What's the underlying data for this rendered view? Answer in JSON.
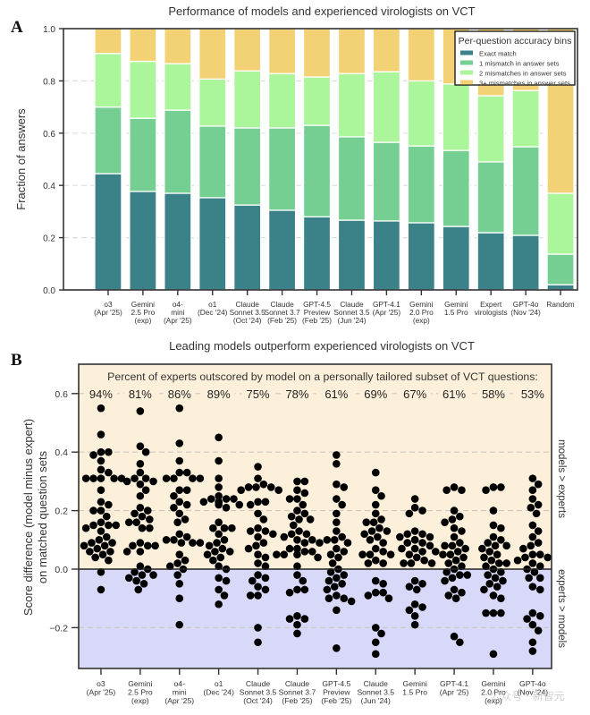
{
  "chart_data": [
    {
      "panel_label": "A",
      "type": "bar",
      "stacked": true,
      "title": "Performance of models and experienced virologists on VCT",
      "xlabel": "",
      "ylabel": "Fraction of answers",
      "ylim": [
        0,
        1.0
      ],
      "yticks": [
        "0.0",
        "0.2",
        "0.4",
        "0.6",
        "0.8",
        "1.0"
      ],
      "grid": "horizontal-dashed",
      "categories": [
        [
          "o3",
          "(Apr '25)"
        ],
        [
          "Gemini",
          "2.5 Pro",
          "(exp)"
        ],
        [
          "o4-",
          "mini",
          "(Apr '25)"
        ],
        [
          "o1",
          "(Dec '24)"
        ],
        [
          "Claude",
          "Sonnet 3.5",
          "(Oct '24)"
        ],
        [
          "Claude",
          "Sonnet 3.7",
          "(Feb '25)"
        ],
        [
          "GPT-4.5",
          "Preview",
          "(Feb '25)"
        ],
        [
          "Claude",
          "Sonnet 3.5",
          "(Jun '24)"
        ],
        [
          "GPT-4.1",
          "(Apr '25)"
        ],
        [
          "Gemini",
          "2.0 Pro",
          "(exp)"
        ],
        [
          "Gemini",
          "1.5 Pro"
        ],
        [
          "Expert",
          "virologists"
        ],
        [
          "GPT-4o",
          "(Nov '24)"
        ],
        [
          "Random"
        ]
      ],
      "legend": {
        "title": "Per-question accuracy bins",
        "position": "top-right"
      },
      "series": [
        {
          "name": "Exact match",
          "color": "#3a8287",
          "values": [
            0.445,
            0.377,
            0.37,
            0.353,
            0.325,
            0.305,
            0.28,
            0.267,
            0.264,
            0.257,
            0.243,
            0.219,
            0.209,
            0.02
          ]
        },
        {
          "name": "1 mismatch in answer sets",
          "color": "#76cf92",
          "values": [
            0.255,
            0.28,
            0.318,
            0.274,
            0.295,
            0.315,
            0.35,
            0.319,
            0.301,
            0.294,
            0.291,
            0.271,
            0.339,
            0.117
          ]
        },
        {
          "name": "2 mismatches in answer sets",
          "color": "#abf59a",
          "values": [
            0.205,
            0.218,
            0.178,
            0.18,
            0.218,
            0.208,
            0.185,
            0.242,
            0.27,
            0.249,
            0.254,
            0.253,
            0.215,
            0.233
          ]
        },
        {
          "name": "3+ mismatches in answer sets",
          "color": "#f3d275",
          "values": [
            0.095,
            0.125,
            0.134,
            0.193,
            0.162,
            0.172,
            0.185,
            0.172,
            0.165,
            0.2,
            0.212,
            0.257,
            0.237,
            0.63
          ]
        }
      ]
    },
    {
      "panel_label": "B",
      "type": "scatter",
      "subtype": "swarm",
      "title": "Leading models outperform experienced virologists on VCT",
      "ylabel": [
        "Score difference (model minus expert)",
        "on matched question sets"
      ],
      "ylim": [
        -0.34,
        0.7
      ],
      "yticks": [
        "−0.2",
        "0.0",
        "0.2",
        "0.4",
        "0.6"
      ],
      "grid": "horizontal-dashed",
      "annotation": "Percent of experts outscored by model on a personally tailored subset of VCT questions:",
      "region_labels": {
        "upper": {
          "text": "models > experts",
          "color": "#e8a83a",
          "bg": "#fdf0da"
        },
        "lower": {
          "text": "experts > models",
          "color": "#2a2ad8",
          "bg": "#d8d8f8"
        }
      },
      "categories": [
        [
          "o3",
          "(Apr '25)"
        ],
        [
          "Gemini",
          "2.5 Pro",
          "(exp)"
        ],
        [
          "o4-",
          "mini",
          "(Apr '25)"
        ],
        [
          "o1",
          "(Dec '24)"
        ],
        [
          "Claude",
          "Sonnet 3.5",
          "(Oct '24)"
        ],
        [
          "Claude",
          "Sonnet 3.7",
          "(Feb '25)"
        ],
        [
          "GPT-4.5",
          "Preview",
          "(Feb '25)"
        ],
        [
          "Claude",
          "Sonnet 3.5",
          "(Jun '24)"
        ],
        [
          "Gemini",
          "1.5 Pro"
        ],
        [
          "GPT-4.1",
          "(Apr '25)"
        ],
        [
          "Gemini",
          "2.0 Pro",
          "(exp)"
        ],
        [
          "GPT-4o",
          "(Nov '24)"
        ]
      ],
      "percent_outscored": [
        "94%",
        "81%",
        "86%",
        "89%",
        "75%",
        "78%",
        "61%",
        "69%",
        "67%",
        "61%",
        "58%",
        "53%"
      ],
      "series": [
        {
          "name": "o3",
          "values": [
            0.55,
            0.46,
            0.4,
            0.4,
            0.39,
            0.37,
            0.34,
            0.33,
            0.31,
            0.31,
            0.31,
            0.31,
            0.31,
            0.27,
            0.23,
            0.22,
            0.2,
            0.2,
            0.18,
            0.16,
            0.15,
            0.15,
            0.15,
            0.14,
            0.13,
            0.11,
            0.1,
            0.09,
            0.09,
            0.08,
            0.08,
            0.07,
            0.06,
            0.06,
            0.05,
            0.04,
            0.03,
            -0.01,
            -0.07
          ]
        },
        {
          "name": "Gemini 2.5 Pro (exp)",
          "values": [
            0.54,
            0.42,
            0.4,
            0.36,
            0.33,
            0.31,
            0.31,
            0.3,
            0.3,
            0.29,
            0.27,
            0.25,
            0.21,
            0.2,
            0.19,
            0.18,
            0.17,
            0.16,
            0.16,
            0.14,
            0.14,
            0.09,
            0.08,
            0.08,
            0.08,
            0.06,
            0.06,
            0.01,
            0.0,
            -0.01,
            -0.02,
            -0.02,
            -0.03,
            -0.04,
            -0.05,
            -0.07
          ]
        },
        {
          "name": "o4-mini (Apr '25)",
          "values": [
            0.55,
            0.43,
            0.37,
            0.33,
            0.33,
            0.31,
            0.31,
            0.31,
            0.31,
            0.27,
            0.27,
            0.25,
            0.23,
            0.22,
            0.21,
            0.19,
            0.17,
            0.16,
            0.12,
            0.11,
            0.1,
            0.1,
            0.09,
            0.09,
            0.09,
            0.05,
            0.03,
            0.02,
            0.01,
            -0.0,
            -0.02,
            -0.05,
            -0.1,
            -0.19
          ]
        },
        {
          "name": "o1 (Dec '24)",
          "values": [
            0.45,
            0.37,
            0.31,
            0.28,
            0.25,
            0.24,
            0.24,
            0.24,
            0.23,
            0.23,
            0.23,
            0.22,
            0.22,
            0.21,
            0.16,
            0.14,
            0.14,
            0.14,
            0.12,
            0.1,
            0.09,
            0.08,
            0.07,
            0.06,
            0.06,
            0.05,
            0.04,
            0.03,
            0.01,
            0.0,
            -0.03,
            -0.04,
            -0.07,
            -0.09,
            -0.12
          ]
        },
        {
          "name": "Claude Sonnet 3.5 (Oct '24)",
          "values": [
            0.35,
            0.31,
            0.29,
            0.28,
            0.28,
            0.28,
            0.27,
            0.27,
            0.23,
            0.23,
            0.22,
            0.19,
            0.17,
            0.14,
            0.13,
            0.13,
            0.12,
            0.11,
            0.09,
            0.08,
            0.07,
            0.05,
            0.04,
            0.02,
            0.01,
            -0.02,
            -0.03,
            -0.04,
            -0.06,
            -0.07,
            -0.09,
            -0.09,
            -0.2,
            -0.25
          ]
        },
        {
          "name": "Claude Sonnet 3.7 (Feb '25)",
          "values": [
            0.3,
            0.3,
            0.27,
            0.26,
            0.24,
            0.24,
            0.22,
            0.2,
            0.19,
            0.18,
            0.17,
            0.17,
            0.15,
            0.13,
            0.12,
            0.12,
            0.11,
            0.1,
            0.1,
            0.09,
            0.07,
            0.07,
            0.06,
            0.06,
            0.05,
            0.05,
            0.05,
            0.04,
            0.01,
            -0.02,
            -0.04,
            -0.07,
            -0.07,
            -0.08,
            -0.16,
            -0.17,
            -0.17,
            -0.19,
            -0.22
          ]
        },
        {
          "name": "GPT-4.5 Preview (Feb '25)",
          "values": [
            0.39,
            0.36,
            0.29,
            0.28,
            0.24,
            0.22,
            0.19,
            0.16,
            0.13,
            0.11,
            0.1,
            0.1,
            0.09,
            0.09,
            0.07,
            0.06,
            0.05,
            0.04,
            0.02,
            0.0,
            -0.01,
            -0.02,
            -0.03,
            -0.04,
            -0.05,
            -0.06,
            -0.07,
            -0.09,
            -0.1,
            -0.1,
            -0.11,
            -0.14,
            -0.27
          ]
        },
        {
          "name": "Claude Sonnet 3.5 (Jun '24)",
          "values": [
            0.33,
            0.27,
            0.25,
            0.22,
            0.19,
            0.17,
            0.16,
            0.16,
            0.14,
            0.13,
            0.13,
            0.12,
            0.11,
            0.1,
            0.09,
            0.07,
            0.06,
            0.05,
            0.05,
            0.05,
            0.03,
            0.02,
            0.02,
            -0.04,
            -0.05,
            -0.08,
            -0.08,
            -0.09,
            -0.1,
            -0.2,
            -0.22,
            -0.25,
            -0.29
          ]
        },
        {
          "name": "Gemini 1.5 Pro",
          "values": [
            0.24,
            0.21,
            0.2,
            0.19,
            0.13,
            0.12,
            0.12,
            0.11,
            0.11,
            0.1,
            0.1,
            0.09,
            0.09,
            0.08,
            0.07,
            0.07,
            0.06,
            0.06,
            0.05,
            0.04,
            0.03,
            0.02,
            0.02,
            0.02,
            -0.04,
            -0.05,
            -0.06,
            -0.07,
            -0.12,
            -0.13,
            -0.14,
            -0.16,
            -0.19
          ]
        },
        {
          "name": "GPT-4.1 (Apr '25)",
          "values": [
            0.28,
            0.27,
            0.27,
            0.2,
            0.18,
            0.17,
            0.16,
            0.14,
            0.13,
            0.11,
            0.09,
            0.08,
            0.08,
            0.07,
            0.06,
            0.05,
            0.05,
            0.04,
            0.03,
            0.02,
            0.01,
            0.0,
            -0.01,
            -0.02,
            -0.02,
            -0.03,
            -0.04,
            -0.07,
            -0.08,
            -0.09,
            -0.1,
            -0.23,
            -0.25
          ]
        },
        {
          "name": "Gemini 2.0 Pro (exp)",
          "values": [
            0.28,
            0.28,
            0.27,
            0.2,
            0.15,
            0.14,
            0.11,
            0.1,
            0.09,
            0.08,
            0.08,
            0.07,
            0.06,
            0.05,
            0.04,
            0.03,
            0.02,
            0.02,
            0.01,
            0.0,
            -0.01,
            -0.02,
            -0.03,
            -0.04,
            -0.05,
            -0.06,
            -0.07,
            -0.09,
            -0.1,
            -0.15,
            -0.15,
            -0.15,
            -0.29
          ]
        },
        {
          "name": "GPT-4o (Nov '24)",
          "values": [
            0.31,
            0.29,
            0.27,
            0.24,
            0.22,
            0.21,
            0.19,
            0.15,
            0.13,
            0.11,
            0.09,
            0.08,
            0.07,
            0.05,
            0.05,
            0.04,
            0.04,
            0.03,
            0.02,
            0.01,
            0.0,
            -0.01,
            -0.03,
            -0.03,
            -0.06,
            -0.07,
            -0.15,
            -0.16,
            -0.17,
            -0.19,
            -0.21,
            -0.25,
            -0.28
          ]
        }
      ]
    }
  ],
  "watermark": "公众号 · 新智元"
}
